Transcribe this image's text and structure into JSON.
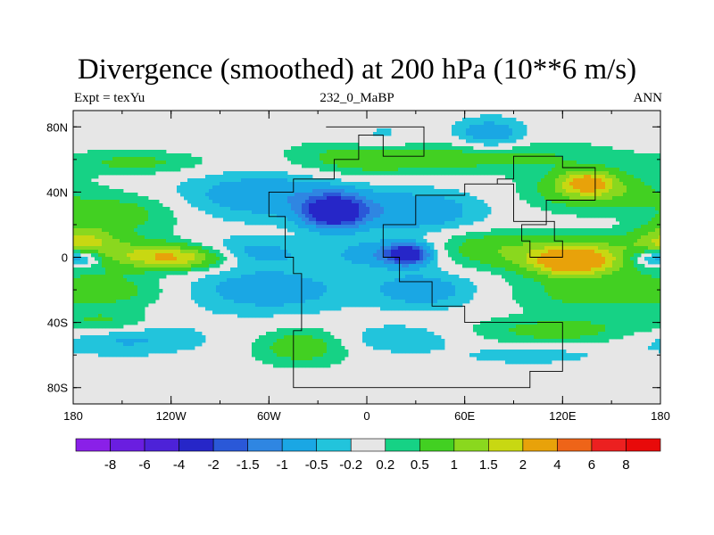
{
  "chart_data": {
    "type": "heatmap",
    "title": "Divergence (smoothed) at 200 hPa (10**6 m/s)",
    "left_string": "Expt = texYu",
    "center_string": "232_0_MaBP",
    "right_string": "ANN",
    "x_ticks": [
      "180",
      "120W",
      "60W",
      "0",
      "60E",
      "120E",
      "180"
    ],
    "x_tick_values": [
      -180,
      -120,
      -60,
      0,
      60,
      120,
      180
    ],
    "y_ticks": [
      "80N",
      "40N",
      "0",
      "40S",
      "80S"
    ],
    "y_tick_values": [
      80,
      40,
      0,
      -40,
      -80
    ],
    "xlim": [
      -180,
      180
    ],
    "ylim": [
      -90,
      90
    ],
    "colorbar": {
      "labels": [
        "-8",
        "-6",
        "-4",
        "-2",
        "-1.5",
        "-1",
        "-0.5",
        "-0.2",
        "0.2",
        "0.5",
        "1",
        "1.5",
        "2",
        "4",
        "6",
        "8"
      ],
      "levels": [
        -8,
        -6,
        -4,
        -2,
        -1.5,
        -1,
        -0.5,
        -0.2,
        0.2,
        0.5,
        1,
        1.5,
        2,
        4,
        6,
        8
      ],
      "colors": [
        "#8a20e8",
        "#6a1ee0",
        "#4d22d8",
        "#2626c8",
        "#2a58d8",
        "#2f86e2",
        "#1aa7e4",
        "#22c4dc",
        "#e6e6e6",
        "#16d285",
        "#42d022",
        "#8ad81e",
        "#c8d812",
        "#e8a20a",
        "#ee6418",
        "#ec2020",
        "#e80a0a"
      ]
    },
    "field_anomalies": [
      {
        "lon": -150,
        "lat": 27,
        "sx": 26,
        "sy": 9,
        "value": 0.7
      },
      {
        "lon": -60,
        "lat": 38,
        "sx": 38,
        "sy": 10,
        "value": -0.9
      },
      {
        "lon": -20,
        "lat": 28,
        "sx": 13,
        "sy": 7,
        "value": -3.0
      },
      {
        "lon": 30,
        "lat": 28,
        "sx": 28,
        "sy": 9,
        "value": -0.9
      },
      {
        "lon": 140,
        "lat": 40,
        "sx": 28,
        "sy": 8,
        "value": 1.0
      },
      {
        "lon": 135,
        "lat": 46,
        "sx": 12,
        "sy": 5,
        "value": 1.9
      },
      {
        "lon": -5,
        "lat": 60,
        "sx": 30,
        "sy": 8,
        "value": 0.6
      },
      {
        "lon": 70,
        "lat": 62,
        "sx": 55,
        "sy": 7,
        "value": 0.7
      },
      {
        "lon": -140,
        "lat": 58,
        "sx": 30,
        "sy": 5,
        "value": 0.6
      },
      {
        "lon": 75,
        "lat": 75,
        "sx": 15,
        "sy": 7,
        "value": -0.9
      },
      {
        "lon": 10,
        "lat": 72,
        "sx": 18,
        "sy": 7,
        "value": -0.4
      },
      {
        "lon": -175,
        "lat": 10,
        "sx": 14,
        "sy": 7,
        "value": 1.3
      },
      {
        "lon": -150,
        "lat": 3,
        "sx": 30,
        "sy": 7,
        "value": 0.8
      },
      {
        "lon": -115,
        "lat": 0,
        "sx": 22,
        "sy": 5,
        "value": 2.0
      },
      {
        "lon": -175,
        "lat": 0,
        "sx": 10,
        "sy": 4,
        "value": -1.5
      },
      {
        "lon": -80,
        "lat": 3,
        "sx": 30,
        "sy": 6,
        "value": -0.8
      },
      {
        "lon": 15,
        "lat": 2,
        "sx": 22,
        "sy": 6,
        "value": -1.0
      },
      {
        "lon": 25,
        "lat": 2,
        "sx": 8,
        "sy": 4,
        "value": -2.6
      },
      {
        "lon": 75,
        "lat": 5,
        "sx": 28,
        "sy": 8,
        "value": 0.8
      },
      {
        "lon": 135,
        "lat": 2,
        "sx": 30,
        "sy": 8,
        "value": 1.0
      },
      {
        "lon": 125,
        "lat": -3,
        "sx": 18,
        "sy": 6,
        "value": 2.2
      },
      {
        "lon": 170,
        "lat": 0,
        "sx": 10,
        "sy": 4,
        "value": -0.8
      },
      {
        "lon": -155,
        "lat": -20,
        "sx": 25,
        "sy": 8,
        "value": 0.6
      },
      {
        "lon": -60,
        "lat": -20,
        "sx": 35,
        "sy": 10,
        "value": -0.8
      },
      {
        "lon": 35,
        "lat": -20,
        "sx": 22,
        "sy": 8,
        "value": -0.8
      },
      {
        "lon": 140,
        "lat": -22,
        "sx": 35,
        "sy": 8,
        "value": 0.7
      },
      {
        "lon": -150,
        "lat": -50,
        "sx": 35,
        "sy": 7,
        "value": -0.6
      },
      {
        "lon": -40,
        "lat": -55,
        "sx": 20,
        "sy": 8,
        "value": 0.8
      },
      {
        "lon": 20,
        "lat": -50,
        "sx": 25,
        "sy": 6,
        "value": -0.5
      },
      {
        "lon": 120,
        "lat": -45,
        "sx": 40,
        "sy": 6,
        "value": 0.7
      },
      {
        "lon": -160,
        "lat": -40,
        "sx": 20,
        "sy": 5,
        "value": 0.6
      },
      {
        "lon": 100,
        "lat": -60,
        "sx": 30,
        "sy": 4,
        "value": -0.4
      }
    ],
    "outline_cells": [
      [
        -25,
        80
      ],
      [
        35,
        80
      ],
      [
        35,
        62
      ],
      [
        10,
        62
      ],
      [
        10,
        75
      ],
      [
        -5,
        75
      ],
      [
        -5,
        60
      ],
      [
        -20,
        60
      ],
      [
        -20,
        48
      ],
      [
        -45,
        48
      ],
      [
        -45,
        40
      ],
      [
        -60,
        40
      ],
      [
        -60,
        25
      ],
      [
        -50,
        25
      ],
      [
        -50,
        0
      ],
      [
        -45,
        0
      ],
      [
        -45,
        -10
      ],
      [
        -40,
        -10
      ],
      [
        -40,
        -45
      ],
      [
        -45,
        -45
      ],
      [
        -45,
        -80
      ],
      [
        100,
        -80
      ],
      [
        100,
        -70
      ],
      [
        120,
        -70
      ],
      [
        120,
        -40
      ],
      [
        60,
        -40
      ],
      [
        60,
        -30
      ],
      [
        40,
        -30
      ],
      [
        40,
        -15
      ],
      [
        20,
        -15
      ],
      [
        20,
        0
      ],
      [
        10,
        0
      ],
      [
        10,
        20
      ],
      [
        30,
        20
      ],
      [
        30,
        38
      ],
      [
        60,
        38
      ],
      [
        60,
        45
      ],
      [
        80,
        45
      ],
      [
        80,
        48
      ],
      [
        90,
        48
      ],
      [
        90,
        62
      ],
      [
        120,
        62
      ],
      [
        120,
        55
      ],
      [
        140,
        55
      ],
      [
        140,
        35
      ],
      [
        110,
        35
      ],
      [
        110,
        20
      ],
      [
        95,
        20
      ],
      [
        95,
        10
      ],
      [
        100,
        10
      ],
      [
        100,
        0
      ],
      [
        120,
        0
      ],
      [
        120,
        10
      ],
      [
        115,
        10
      ],
      [
        115,
        22
      ],
      [
        90,
        22
      ],
      [
        90,
        45
      ],
      [
        80,
        45
      ]
    ]
  }
}
